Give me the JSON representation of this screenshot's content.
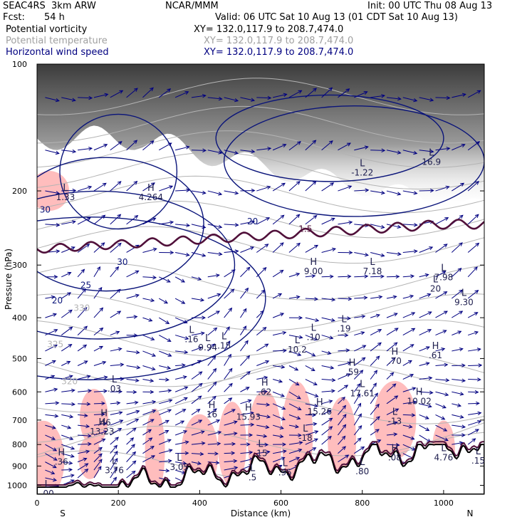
{
  "header": {
    "model": "SEAC4RS  3km ARW",
    "center": "NCAR/MMM",
    "init": "Init: 00 UTC Thu 08 Aug 13",
    "fcst_label": "Fcst:",
    "fcst_value": "54 h",
    "valid": "Valid: 06 UTC Sat 10 Aug 13 (01 CDT Sat 10 Aug 13)",
    "fields": [
      {
        "name": "Potential vorticity",
        "xy": "XY= 132.0,117.9 to 208.7,474.0",
        "color": "#000000"
      },
      {
        "name": "Potential temperature",
        "xy": "XY= 132.0,117.9 to 208.7,474.0",
        "color": "#a0a0a0"
      },
      {
        "name": "Horizontal wind speed",
        "xy": "XY= 132.0,117.9 to 208.7,474.0",
        "color": "#000080"
      }
    ]
  },
  "chart_data": {
    "type": "cross-section",
    "xlabel": "Distance (km)",
    "ylabel": "Pressure (hPa)",
    "xlim": [
      0,
      1100
    ],
    "ylim": [
      1050,
      100
    ],
    "y_scale": "log",
    "x_ticks": [
      0,
      200,
      400,
      600,
      800,
      1000
    ],
    "y_ticks": [
      100,
      200,
      300,
      400,
      500,
      600,
      700,
      800,
      900,
      1000
    ],
    "x_end_labels": {
      "left": "S",
      "right": "N"
    },
    "colors": {
      "pv_shading": "#ffb6b6",
      "pv_contour": "#50103a",
      "theta_contour": "#b4b4b4",
      "wind_contour": "#0a147a",
      "wind_vector": "#000080",
      "terrain": "#000000"
    },
    "wind_speed_contour_labels": [
      {
        "value": "30",
        "x": 20,
        "p": 225
      },
      {
        "value": "30",
        "x": 210,
        "p": 300
      },
      {
        "value": "25",
        "x": 120,
        "p": 340
      },
      {
        "value": "20",
        "x": 50,
        "p": 370
      },
      {
        "value": "20",
        "x": 530,
        "p": 240
      }
    ],
    "theta_contour_labels": [
      {
        "value": "330",
        "x": 110,
        "p": 385
      },
      {
        "value": "325",
        "x": 45,
        "p": 470
      },
      {
        "value": "320",
        "x": 80,
        "p": 575
      }
    ],
    "pv_contour_labels": [
      {
        "value": "1.5",
        "x": 660,
        "p": 250
      }
    ],
    "extrema": [
      {
        "kind": "L",
        "value": "1.33",
        "x": 70,
        "p": 200
      },
      {
        "kind": "H",
        "value": "4.264",
        "x": 280,
        "p": 200
      },
      {
        "kind": "L",
        "value": "-1.22",
        "x": 800,
        "p": 175
      },
      {
        "kind": "L",
        "value": "16.9",
        "x": 970,
        "p": 165
      },
      {
        "kind": "H",
        "value": "9.00",
        "x": 680,
        "p": 300
      },
      {
        "kind": "L",
        "value": "7.18",
        "x": 825,
        "p": 300
      },
      {
        "kind": "L",
        "value": "7.98",
        "x": 1000,
        "p": 310
      },
      {
        "kind": "L",
        "value": "20",
        "x": 980,
        "p": 330
      },
      {
        "kind": "L",
        "value": "9.30",
        "x": 1050,
        "p": 355
      },
      {
        "kind": "L",
        "value": ".16",
        "x": 380,
        "p": 435
      },
      {
        "kind": "L",
        "value": "9.94",
        "x": 420,
        "p": 455
      },
      {
        "kind": "L",
        "value": ".15",
        "x": 460,
        "p": 450
      },
      {
        "kind": "L",
        "value": ".10",
        "x": 680,
        "p": 430
      },
      {
        "kind": "L",
        "value": "10.2",
        "x": 640,
        "p": 460
      },
      {
        "kind": "L",
        "value": ".19",
        "x": 755,
        "p": 410
      },
      {
        "kind": "H",
        "value": ".70",
        "x": 880,
        "p": 490
      },
      {
        "kind": "H",
        "value": ".61",
        "x": 980,
        "p": 475
      },
      {
        "kind": "H",
        "value": ".59",
        "x": 775,
        "p": 520
      },
      {
        "kind": "L",
        "value": ".03",
        "x": 190,
        "p": 570
      },
      {
        "kind": "H",
        "value": ".62",
        "x": 560,
        "p": 580
      },
      {
        "kind": "L",
        "value": "17.61",
        "x": 800,
        "p": 585
      },
      {
        "kind": "H",
        "value": "10.02",
        "x": 940,
        "p": 610
      },
      {
        "kind": "H",
        "value": "16",
        "x": 430,
        "p": 655
      },
      {
        "kind": "H",
        "value": "15.93",
        "x": 520,
        "p": 665
      },
      {
        "kind": "H",
        "value": "15.26",
        "x": 695,
        "p": 645
      },
      {
        "kind": "L",
        "value": "-13",
        "x": 880,
        "p": 680
      },
      {
        "kind": "H",
        "value": ".46",
        "x": 165,
        "p": 685
      },
      {
        "kind": "H",
        "value": "13.23",
        "x": 160,
        "p": 720
      },
      {
        "kind": "L",
        "value": "-18",
        "x": 660,
        "p": 745
      },
      {
        "kind": "L",
        "value": ".15",
        "x": 550,
        "p": 810
      },
      {
        "kind": "L",
        "value": "4.76",
        "x": 1000,
        "p": 830
      },
      {
        "kind": "H",
        "value": ".08",
        "x": 880,
        "p": 830
      },
      {
        "kind": "H",
        "value": ".36",
        "x": 60,
        "p": 850
      },
      {
        "kind": "L",
        "value": ".15",
        "x": 1085,
        "p": 845
      },
      {
        "kind": "L",
        "value": "3.76",
        "x": 190,
        "p": 890
      },
      {
        "kind": "L",
        "value": "3.05",
        "x": 350,
        "p": 875
      },
      {
        "kind": "L",
        "value": ".95",
        "x": 610,
        "p": 900
      },
      {
        "kind": "L",
        "value": ".80",
        "x": 800,
        "p": 895
      },
      {
        "kind": "L",
        "value": ".5",
        "x": 530,
        "p": 925
      },
      {
        "kind": "L",
        "value": ".00",
        "x": 25,
        "p": 1010
      }
    ]
  }
}
